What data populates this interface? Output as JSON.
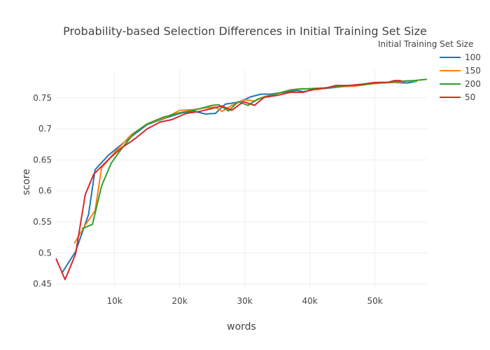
{
  "chart_data": {
    "type": "line",
    "title": "Probability-based Selection Differences in Initial Training Set Size",
    "xlabel": "words",
    "ylabel": "score",
    "xlim": [
      1000,
      58000
    ],
    "ylim": [
      0.445,
      0.795
    ],
    "x_ticks": [
      10000,
      20000,
      30000,
      40000,
      50000
    ],
    "x_tick_labels": [
      "10k",
      "20k",
      "30k",
      "40k",
      "50k"
    ],
    "y_ticks": [
      0.45,
      0.5,
      0.55,
      0.6,
      0.65,
      0.7,
      0.75
    ],
    "y_tick_labels": [
      "0.45",
      "0.5",
      "0.55",
      "0.6",
      "0.65",
      "0.7",
      "0.75"
    ],
    "grid": true,
    "legend_title": "Initial Training Set Size",
    "legend_position": "top-right",
    "series": [
      {
        "name": "100",
        "color": "#1f77b4",
        "points": [
          [
            2000,
            0.469
          ],
          [
            4000,
            0.502
          ],
          [
            6000,
            0.562
          ],
          [
            7000,
            0.634
          ],
          [
            9000,
            0.657
          ],
          [
            12000,
            0.683
          ],
          [
            15000,
            0.707
          ],
          [
            18000,
            0.718
          ],
          [
            20000,
            0.725
          ],
          [
            22000,
            0.729
          ],
          [
            24000,
            0.724
          ],
          [
            25500,
            0.725
          ],
          [
            27000,
            0.74
          ],
          [
            29000,
            0.743
          ],
          [
            31000,
            0.752
          ],
          [
            32500,
            0.756
          ],
          [
            34000,
            0.756
          ],
          [
            36000,
            0.759
          ],
          [
            38000,
            0.762
          ],
          [
            39000,
            0.76
          ],
          [
            41000,
            0.764
          ],
          [
            43000,
            0.766
          ],
          [
            45000,
            0.768
          ],
          [
            47000,
            0.771
          ],
          [
            49000,
            0.773
          ],
          [
            51000,
            0.775
          ],
          [
            53000,
            0.775
          ],
          [
            55000,
            0.774
          ],
          [
            56500,
            0.777
          ]
        ]
      },
      {
        "name": "150",
        "color": "#ff7f0e",
        "points": [
          [
            3800,
            0.515
          ],
          [
            5500,
            0.545
          ],
          [
            7000,
            0.568
          ],
          [
            8000,
            0.637
          ],
          [
            10000,
            0.662
          ],
          [
            12500,
            0.69
          ],
          [
            15000,
            0.708
          ],
          [
            18000,
            0.719
          ],
          [
            20000,
            0.73
          ],
          [
            22000,
            0.731
          ],
          [
            24000,
            0.734
          ],
          [
            25500,
            0.735
          ],
          [
            26500,
            0.728
          ],
          [
            28000,
            0.738
          ],
          [
            30000,
            0.747
          ],
          [
            31500,
            0.745
          ],
          [
            33000,
            0.752
          ],
          [
            35000,
            0.757
          ],
          [
            37000,
            0.763
          ],
          [
            39000,
            0.765
          ],
          [
            41000,
            0.763
          ],
          [
            43000,
            0.767
          ],
          [
            45000,
            0.768
          ],
          [
            47000,
            0.769
          ],
          [
            49000,
            0.772
          ],
          [
            51000,
            0.774
          ],
          [
            53000,
            0.775
          ],
          [
            55000,
            0.777
          ],
          [
            56500,
            0.777
          ]
        ]
      },
      {
        "name": "200",
        "color": "#2ca02c",
        "points": [
          [
            5000,
            0.539
          ],
          [
            6600,
            0.546
          ],
          [
            8000,
            0.608
          ],
          [
            9500,
            0.645
          ],
          [
            11000,
            0.667
          ],
          [
            13000,
            0.693
          ],
          [
            15000,
            0.708
          ],
          [
            17500,
            0.719
          ],
          [
            20000,
            0.726
          ],
          [
            22500,
            0.731
          ],
          [
            25000,
            0.738
          ],
          [
            26000,
            0.739
          ],
          [
            27500,
            0.729
          ],
          [
            29000,
            0.744
          ],
          [
            30500,
            0.738
          ],
          [
            32000,
            0.748
          ],
          [
            34000,
            0.754
          ],
          [
            36000,
            0.76
          ],
          [
            38000,
            0.764
          ],
          [
            40000,
            0.765
          ],
          [
            42000,
            0.766
          ],
          [
            44000,
            0.768
          ],
          [
            46000,
            0.77
          ],
          [
            48000,
            0.771
          ],
          [
            50000,
            0.774
          ],
          [
            52000,
            0.775
          ],
          [
            54000,
            0.777
          ],
          [
            56000,
            0.778
          ],
          [
            58000,
            0.78
          ]
        ]
      },
      {
        "name": "50",
        "color": "#d62728",
        "points": [
          [
            1000,
            0.491
          ],
          [
            2400,
            0.457
          ],
          [
            4000,
            0.498
          ],
          [
            5500,
            0.594
          ],
          [
            6800,
            0.627
          ],
          [
            9000,
            0.65
          ],
          [
            11000,
            0.669
          ],
          [
            13000,
            0.683
          ],
          [
            15000,
            0.7
          ],
          [
            17000,
            0.711
          ],
          [
            18800,
            0.715
          ],
          [
            21000,
            0.725
          ],
          [
            23000,
            0.728
          ],
          [
            25000,
            0.733
          ],
          [
            26500,
            0.737
          ],
          [
            28000,
            0.73
          ],
          [
            29800,
            0.744
          ],
          [
            31500,
            0.738
          ],
          [
            33000,
            0.751
          ],
          [
            35000,
            0.754
          ],
          [
            37000,
            0.759
          ],
          [
            39000,
            0.759
          ],
          [
            40500,
            0.764
          ],
          [
            42500,
            0.766
          ],
          [
            44000,
            0.77
          ],
          [
            46000,
            0.77
          ],
          [
            48000,
            0.772
          ],
          [
            50000,
            0.775
          ],
          [
            52000,
            0.775
          ],
          [
            53000,
            0.778
          ],
          [
            54000,
            0.778
          ]
        ]
      }
    ]
  }
}
